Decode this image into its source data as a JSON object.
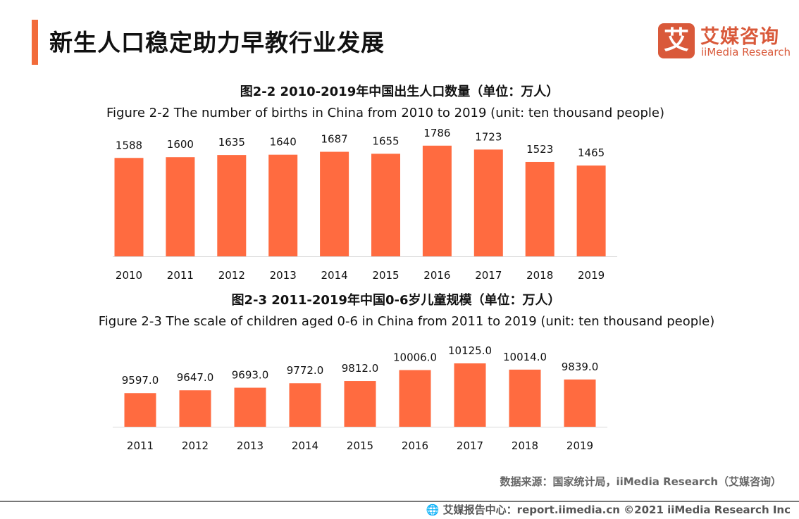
{
  "header": {
    "title": "新生人口稳定助力早教行业发展",
    "logo_mark": "艾",
    "logo_cn": "艾媒咨询",
    "logo_en": "iiMedia Research"
  },
  "chart_data": [
    {
      "type": "bar",
      "title": "图2-2 2010-2019年中国出生人口数量（单位：万人）",
      "subtitle": "Figure 2-2 The number of births in China from 2010 to 2019 (unit: ten thousand people)",
      "categories": [
        "2010",
        "2011",
        "2012",
        "2013",
        "2014",
        "2015",
        "2016",
        "2017",
        "2018",
        "2019"
      ],
      "values": [
        1588,
        1600,
        1635,
        1640,
        1687,
        1655,
        1786,
        1723,
        1523,
        1465
      ],
      "labels": [
        "1588",
        "1600",
        "1635",
        "1640",
        "1687",
        "1655",
        "1786",
        "1723",
        "1523",
        "1465"
      ],
      "ylim": [
        0,
        2000
      ],
      "color": "#ff6b40",
      "grid": false
    },
    {
      "type": "bar",
      "title": "图2-3 2011-2019年中国0-6岁儿童规模（单位：万人）",
      "subtitle": "Figure 2-3 The scale of children aged 0-6 in China from 2011 to 2019 (unit: ten thousand people)",
      "categories": [
        "2011",
        "2012",
        "2013",
        "2014",
        "2015",
        "2016",
        "2017",
        "2018",
        "2019"
      ],
      "values": [
        9597,
        9647,
        9693,
        9772,
        9812,
        10006,
        10125,
        10014,
        9839
      ],
      "labels": [
        "9597.0",
        "9647.0",
        "9693.0",
        "9772.0",
        "9812.0",
        "10006.0",
        "10125.0",
        "10014.0",
        "9839.0"
      ],
      "ylim": [
        9000,
        11000
      ],
      "color": "#ff6b40",
      "grid": false
    }
  ],
  "source": "数据来源：国家统计局，iiMedia Research（艾媒咨询）",
  "footer": {
    "icon": "globe-icon",
    "text": "艾媒报告中心：report.iimedia.cn   ©2021  iiMedia Research  Inc"
  }
}
